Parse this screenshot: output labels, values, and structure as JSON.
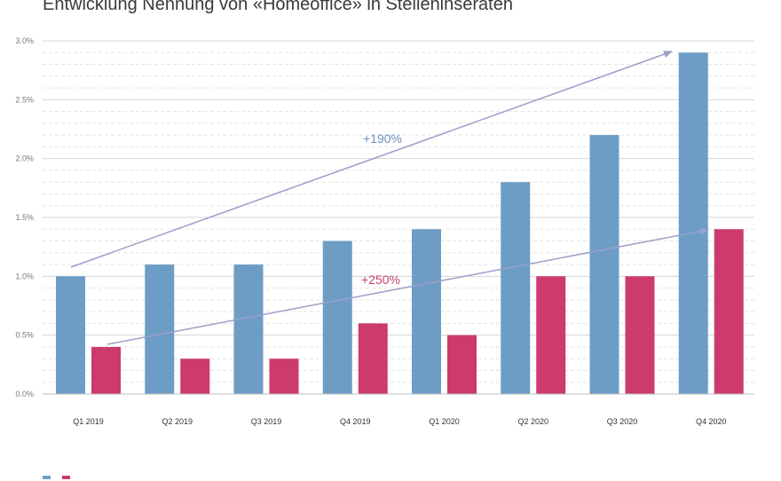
{
  "chart_data": {
    "type": "bar",
    "title": "Entwicklung Nennung von «Homeoffice» in Stelleninseraten",
    "categories": [
      "Q1 2019",
      "Q2 2019",
      "Q3 2019",
      "Q4 2019",
      "Q1 2020",
      "Q2 2020",
      "Q3 2020",
      "Q4 2020"
    ],
    "series": [
      {
        "values": [
          1.0,
          1.1,
          1.1,
          1.3,
          1.4,
          1.8,
          2.2,
          2.9
        ],
        "color": "#6d9dc5"
      },
      {
        "values": [
          0.4,
          0.3,
          0.3,
          0.6,
          0.5,
          1.0,
          1.0,
          1.4
        ],
        "color": "#cc3a6e"
      }
    ],
    "ylim": [
      0,
      3.0
    ],
    "yticks": [
      "0.0%",
      "0.5%",
      "1.0%",
      "1.5%",
      "2.0%",
      "2.5%",
      "3.0%"
    ],
    "grid": true,
    "annotations": [
      {
        "text": "+190%",
        "color": "#6d8fb8"
      },
      {
        "text": "+250%",
        "color": "#c2427a"
      }
    ]
  }
}
